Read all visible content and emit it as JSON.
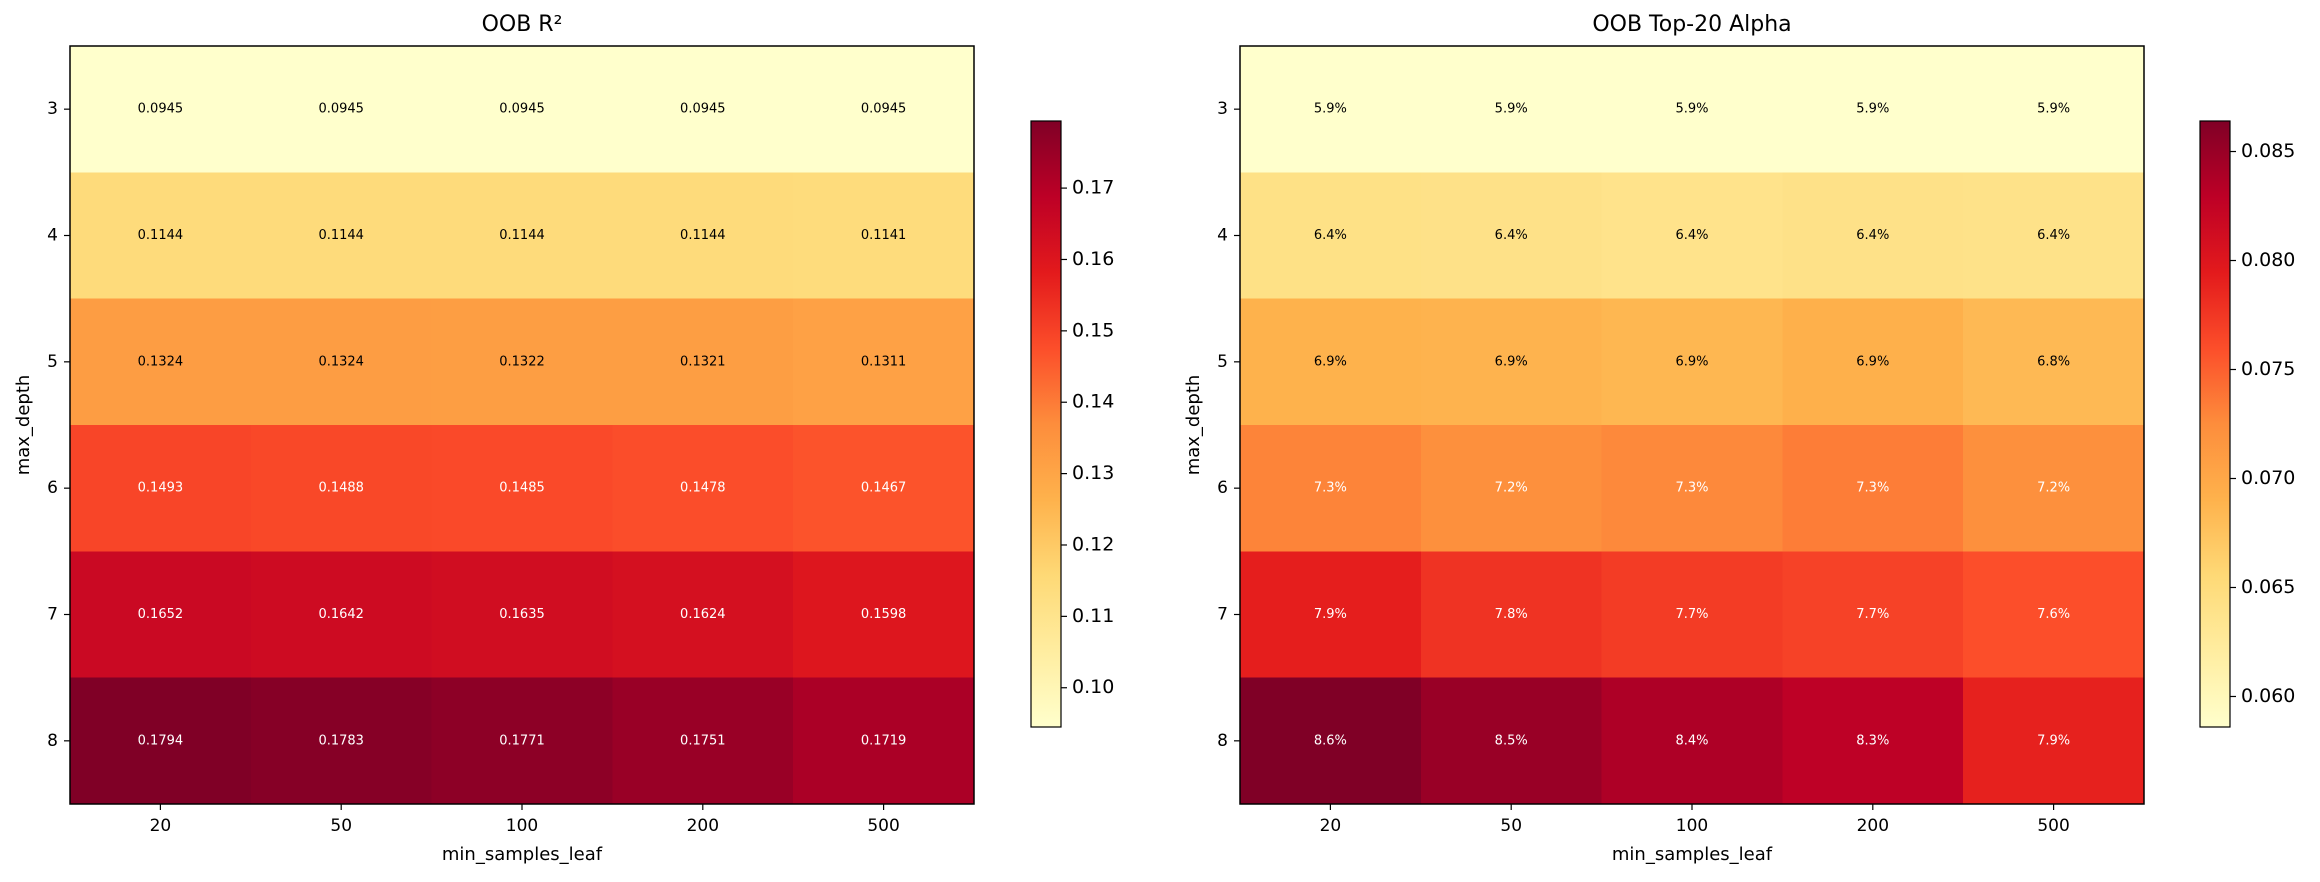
{
  "chart_data": [
    {
      "type": "heatmap",
      "title": "OOB R²",
      "xlabel": "min_samples_leaf",
      "ylabel": "max_depth",
      "categories": [
        "20",
        "50",
        "100",
        "200",
        "500"
      ],
      "y_categories": [
        "3",
        "4",
        "5",
        "6",
        "7",
        "8"
      ],
      "values": [
        [
          0.0945,
          0.0945,
          0.0945,
          0.0945,
          0.0945
        ],
        [
          0.1144,
          0.1144,
          0.1144,
          0.1144,
          0.1141
        ],
        [
          0.1324,
          0.1324,
          0.1322,
          0.1321,
          0.1311
        ],
        [
          0.1493,
          0.1488,
          0.1485,
          0.1478,
          0.1467
        ],
        [
          0.1652,
          0.1642,
          0.1635,
          0.1624,
          0.1598
        ],
        [
          0.1794,
          0.1783,
          0.1771,
          0.1751,
          0.1719
        ]
      ],
      "clim": [
        0.0945,
        0.1794
      ],
      "cticks": [
        {
          "value": 0.1,
          "label": "0.10"
        },
        0.11,
        0.12,
        0.13,
        0.14,
        0.15,
        0.16,
        0.17
      ],
      "colormap": [
        "#ffffcc",
        "#ffeda0",
        "#fed976",
        "#feb24c",
        "#fd8d3c",
        "#fc4e2a",
        "#e31a1c",
        "#bd0026",
        "#800026"
      ]
    },
    {
      "type": "heatmap",
      "title": "OOB Top-20 Alpha",
      "xlabel": "min_samples_leaf",
      "ylabel": "max_depth",
      "categories": [
        "20",
        "50",
        "100",
        "200",
        "500"
      ],
      "y_categories": [
        "3",
        "4",
        "5",
        "6",
        "7",
        "8"
      ],
      "values": [
        [
          0.0586,
          0.0586,
          0.0586,
          0.0586,
          0.0586
        ],
        [
          0.0642,
          0.0641,
          0.0638,
          0.0641,
          0.064
        ],
        [
          0.069,
          0.0689,
          0.0686,
          0.0692,
          0.0684
        ],
        [
          0.073,
          0.0722,
          0.0727,
          0.0734,
          0.0722
        ],
        [
          0.0792,
          0.0778,
          0.0772,
          0.0768,
          0.076
        ],
        [
          0.0864,
          0.085,
          0.0838,
          0.0828,
          0.079
        ]
      ],
      "value_labels": [
        [
          "5.9%",
          "5.9%",
          "5.9%",
          "5.9%",
          "5.9%"
        ],
        [
          "6.4%",
          "6.4%",
          "6.4%",
          "6.4%",
          "6.4%"
        ],
        [
          "6.9%",
          "6.9%",
          "6.9%",
          "6.9%",
          "6.8%"
        ],
        [
          "7.3%",
          "7.2%",
          "7.3%",
          "7.3%",
          "7.2%"
        ],
        [
          "7.9%",
          "7.8%",
          "7.7%",
          "7.7%",
          "7.6%"
        ],
        [
          "8.6%",
          "8.5%",
          "8.4%",
          "8.3%",
          "7.9%"
        ]
      ],
      "clim": [
        0.0586,
        0.0864
      ],
      "cticks": [
        {
          "value": 0.06,
          "label": "0.060"
        },
        0.065,
        {
          "value": 0.07,
          "label": "0.070"
        },
        0.075,
        {
          "value": 0.08,
          "label": "0.080"
        },
        0.085
      ],
      "colormap": [
        "#ffffcc",
        "#ffeda0",
        "#fed976",
        "#feb24c",
        "#fd8d3c",
        "#fc4e2a",
        "#e31a1c",
        "#bd0026",
        "#800026"
      ]
    }
  ]
}
